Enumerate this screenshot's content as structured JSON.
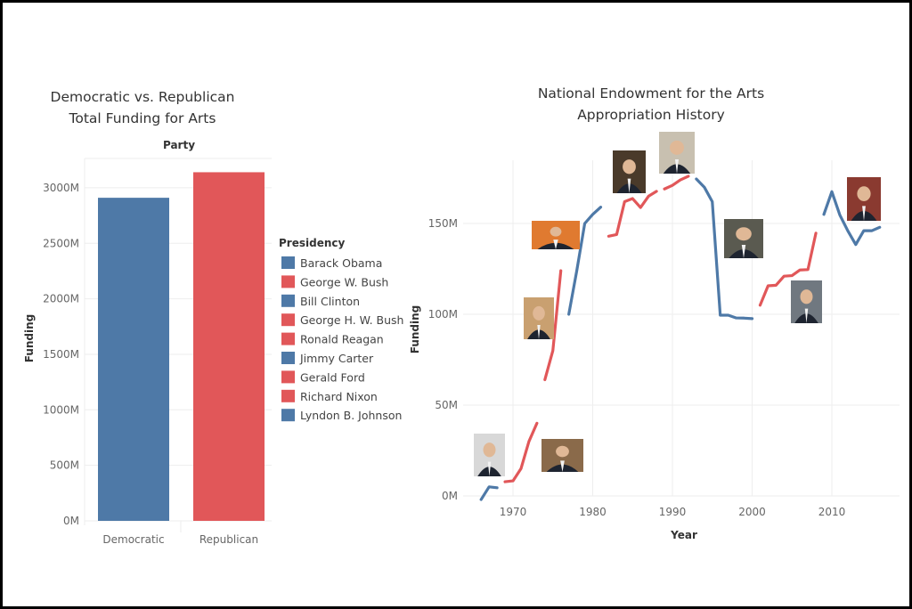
{
  "colors": {
    "democratic": "#4e79a7",
    "republican": "#e15759"
  },
  "chart_data": [
    {
      "type": "bar",
      "title": [
        "Democratic vs. Republican",
        "Total Funding for Arts"
      ],
      "column_header": "Party",
      "xlabel": "",
      "ylabel": "Funding",
      "ylim": [
        0,
        3200
      ],
      "yticks": [
        0,
        500,
        1000,
        1500,
        2000,
        2500,
        3000
      ],
      "ytick_labels": [
        "0M",
        "500M",
        "1000M",
        "1500M",
        "2000M",
        "2500M",
        "3000M"
      ],
      "categories": [
        "Democratic",
        "Republican"
      ],
      "values": [
        2910,
        3140
      ],
      "unit": "M",
      "legend": {
        "title": "Presidency",
        "placement": "right",
        "items": [
          {
            "label": "Barack Obama",
            "party": "democratic"
          },
          {
            "label": "George W. Bush",
            "party": "republican"
          },
          {
            "label": "Bill Clinton",
            "party": "democratic"
          },
          {
            "label": "George H. W. Bush",
            "party": "republican"
          },
          {
            "label": "Ronald Reagan",
            "party": "republican"
          },
          {
            "label": "Jimmy Carter",
            "party": "democratic"
          },
          {
            "label": "Gerald Ford",
            "party": "republican"
          },
          {
            "label": "Richard Nixon",
            "party": "republican"
          },
          {
            "label": "Lyndon B. Johnson",
            "party": "democratic"
          }
        ]
      }
    },
    {
      "type": "line",
      "title": [
        "National Endowment for the Arts",
        "Appropriation History"
      ],
      "xlabel": "Year",
      "ylabel": "Funding",
      "xlim": [
        1963,
        2019
      ],
      "ylim": [
        0,
        185
      ],
      "xticks": [
        1970,
        1980,
        1990,
        2000,
        2010
      ],
      "xtick_labels": [
        "1970",
        "1980",
        "1990",
        "2000",
        "2010"
      ],
      "yticks": [
        0,
        50,
        100,
        150
      ],
      "ytick_labels": [
        "0M",
        "50M",
        "100M",
        "150M"
      ],
      "unit": "M",
      "series": [
        {
          "name": "Lyndon B. Johnson",
          "party": "democratic",
          "x": [
            1966,
            1967,
            1968
          ],
          "y": [
            -2,
            5,
            4.5
          ]
        },
        {
          "name": "Richard Nixon",
          "party": "republican",
          "x": [
            1969,
            1970,
            1971,
            1972,
            1973
          ],
          "y": [
            7.8,
            8.3,
            15,
            30,
            40
          ]
        },
        {
          "name": "Gerald Ford",
          "party": "republican",
          "x": [
            1974,
            1975,
            1976
          ],
          "y": [
            64,
            80,
            124
          ]
        },
        {
          "name": "Jimmy Carter",
          "party": "democratic",
          "x": [
            1977,
            1978,
            1979,
            1980,
            1981
          ],
          "y": [
            100,
            124,
            150,
            155,
            159
          ]
        },
        {
          "name": "Ronald Reagan",
          "party": "republican",
          "x": [
            1982,
            1983,
            1984,
            1985,
            1986,
            1987,
            1988
          ],
          "y": [
            143,
            143.9,
            162,
            163.7,
            158.8,
            165,
            167.7
          ]
        },
        {
          "name": "George H. W. Bush",
          "party": "republican",
          "x": [
            1989,
            1990,
            1991,
            1992
          ],
          "y": [
            169,
            171,
            174,
            176
          ]
        },
        {
          "name": "Bill Clinton",
          "party": "democratic",
          "x": [
            1993,
            1994,
            1995,
            1996,
            1997,
            1998,
            1999,
            2000
          ],
          "y": [
            174.5,
            170,
            162,
            99.5,
            99.5,
            98,
            97.9,
            97.6
          ]
        },
        {
          "name": "George W. Bush",
          "party": "republican",
          "x": [
            2001,
            2002,
            2003,
            2004,
            2005,
            2006,
            2007,
            2008
          ],
          "y": [
            105,
            115.7,
            116,
            121,
            121.3,
            124.4,
            124.6,
            144.7
          ]
        },
        {
          "name": "Barack Obama",
          "party": "democratic",
          "x": [
            2009,
            2010,
            2011,
            2012,
            2013,
            2014,
            2015,
            2016
          ],
          "y": [
            155,
            167.5,
            154.7,
            146,
            138.4,
            146,
            146,
            147.9
          ]
        }
      ]
    }
  ]
}
